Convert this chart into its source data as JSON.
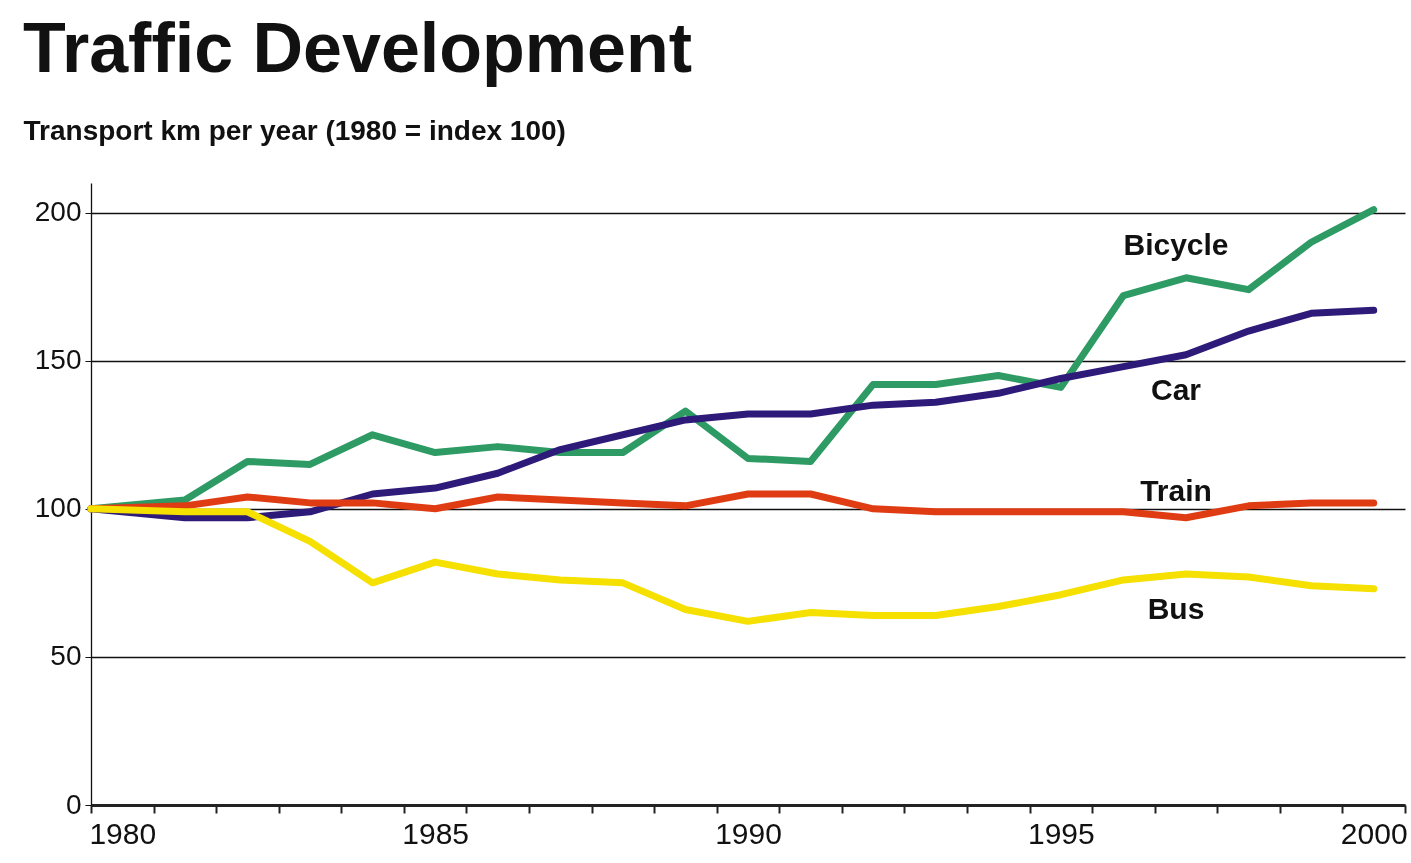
{
  "chart_data": {
    "type": "line",
    "title": "Traffic Development",
    "ylabel": "Transport km per year (1980 = index 100)",
    "x": [
      1979.5,
      1981,
      1982,
      1983,
      1984,
      1985,
      1986,
      1987,
      1988,
      1989,
      1990,
      1991,
      1992,
      1993,
      1994,
      1995,
      1996,
      1997,
      1998,
      1999,
      2000
    ],
    "series": [
      {
        "name": "Bicycle",
        "color": "#2e9a64",
        "values": [
          100,
          103,
          116,
          115,
          125,
          119,
          121,
          119,
          119,
          133,
          117,
          116,
          142,
          142,
          145,
          141,
          172,
          178,
          174,
          190,
          201
        ]
      },
      {
        "name": "Car",
        "color": "#2e1a78",
        "values": [
          100,
          97,
          97,
          99,
          105,
          107,
          112,
          120,
          125,
          130,
          132,
          132,
          135,
          136,
          139,
          144,
          148,
          152,
          160,
          166,
          167
        ]
      },
      {
        "name": "Train",
        "color": "#e03c14",
        "values": [
          100,
          101,
          104,
          102,
          102,
          100,
          104,
          103,
          102,
          101,
          105,
          105,
          100,
          99,
          99,
          99,
          99,
          97,
          101,
          102,
          102
        ]
      },
      {
        "name": "Bus",
        "color": "#f5e000",
        "values": [
          100,
          99,
          99,
          89,
          75,
          82,
          78,
          76,
          75,
          66,
          62,
          65,
          64,
          64,
          67,
          71,
          76,
          78,
          77,
          74,
          73
        ]
      }
    ],
    "xlim": [
      1979.5,
      2000.5
    ],
    "xticks": [
      {
        "value": 1979.5,
        "label": null
      },
      1980,
      {
        "value": 1980.5,
        "label": null
      },
      {
        "value": 1981.5,
        "label": null
      },
      {
        "value": 1982.5,
        "label": null
      },
      {
        "value": 1983.5,
        "label": null
      },
      {
        "value": 1984.5,
        "label": null
      },
      1985,
      {
        "value": 1985.5,
        "label": null
      },
      {
        "value": 1986.5,
        "label": null
      },
      {
        "value": 1987.5,
        "label": null
      },
      {
        "value": 1988.5,
        "label": null
      },
      {
        "value": 1989.5,
        "label": null
      },
      1990,
      {
        "value": 1990.5,
        "label": null
      },
      {
        "value": 1991.5,
        "label": null
      },
      {
        "value": 1992.5,
        "label": null
      },
      {
        "value": 1993.5,
        "label": null
      },
      {
        "value": 1994.5,
        "label": null
      },
      1995,
      {
        "value": 1995.5,
        "label": null
      },
      {
        "value": 1996.5,
        "label": null
      },
      {
        "value": 1997.5,
        "label": null
      },
      {
        "value": 1998.5,
        "label": null
      },
      {
        "value": 1999.5,
        "label": null
      },
      2000,
      {
        "value": 2000.5,
        "label": null
      }
    ],
    "ylim": [
      0,
      210
    ],
    "yticks": [
      0,
      50,
      100,
      150,
      200
    ],
    "grid": "y",
    "legend": false,
    "line_style": "solid"
  }
}
